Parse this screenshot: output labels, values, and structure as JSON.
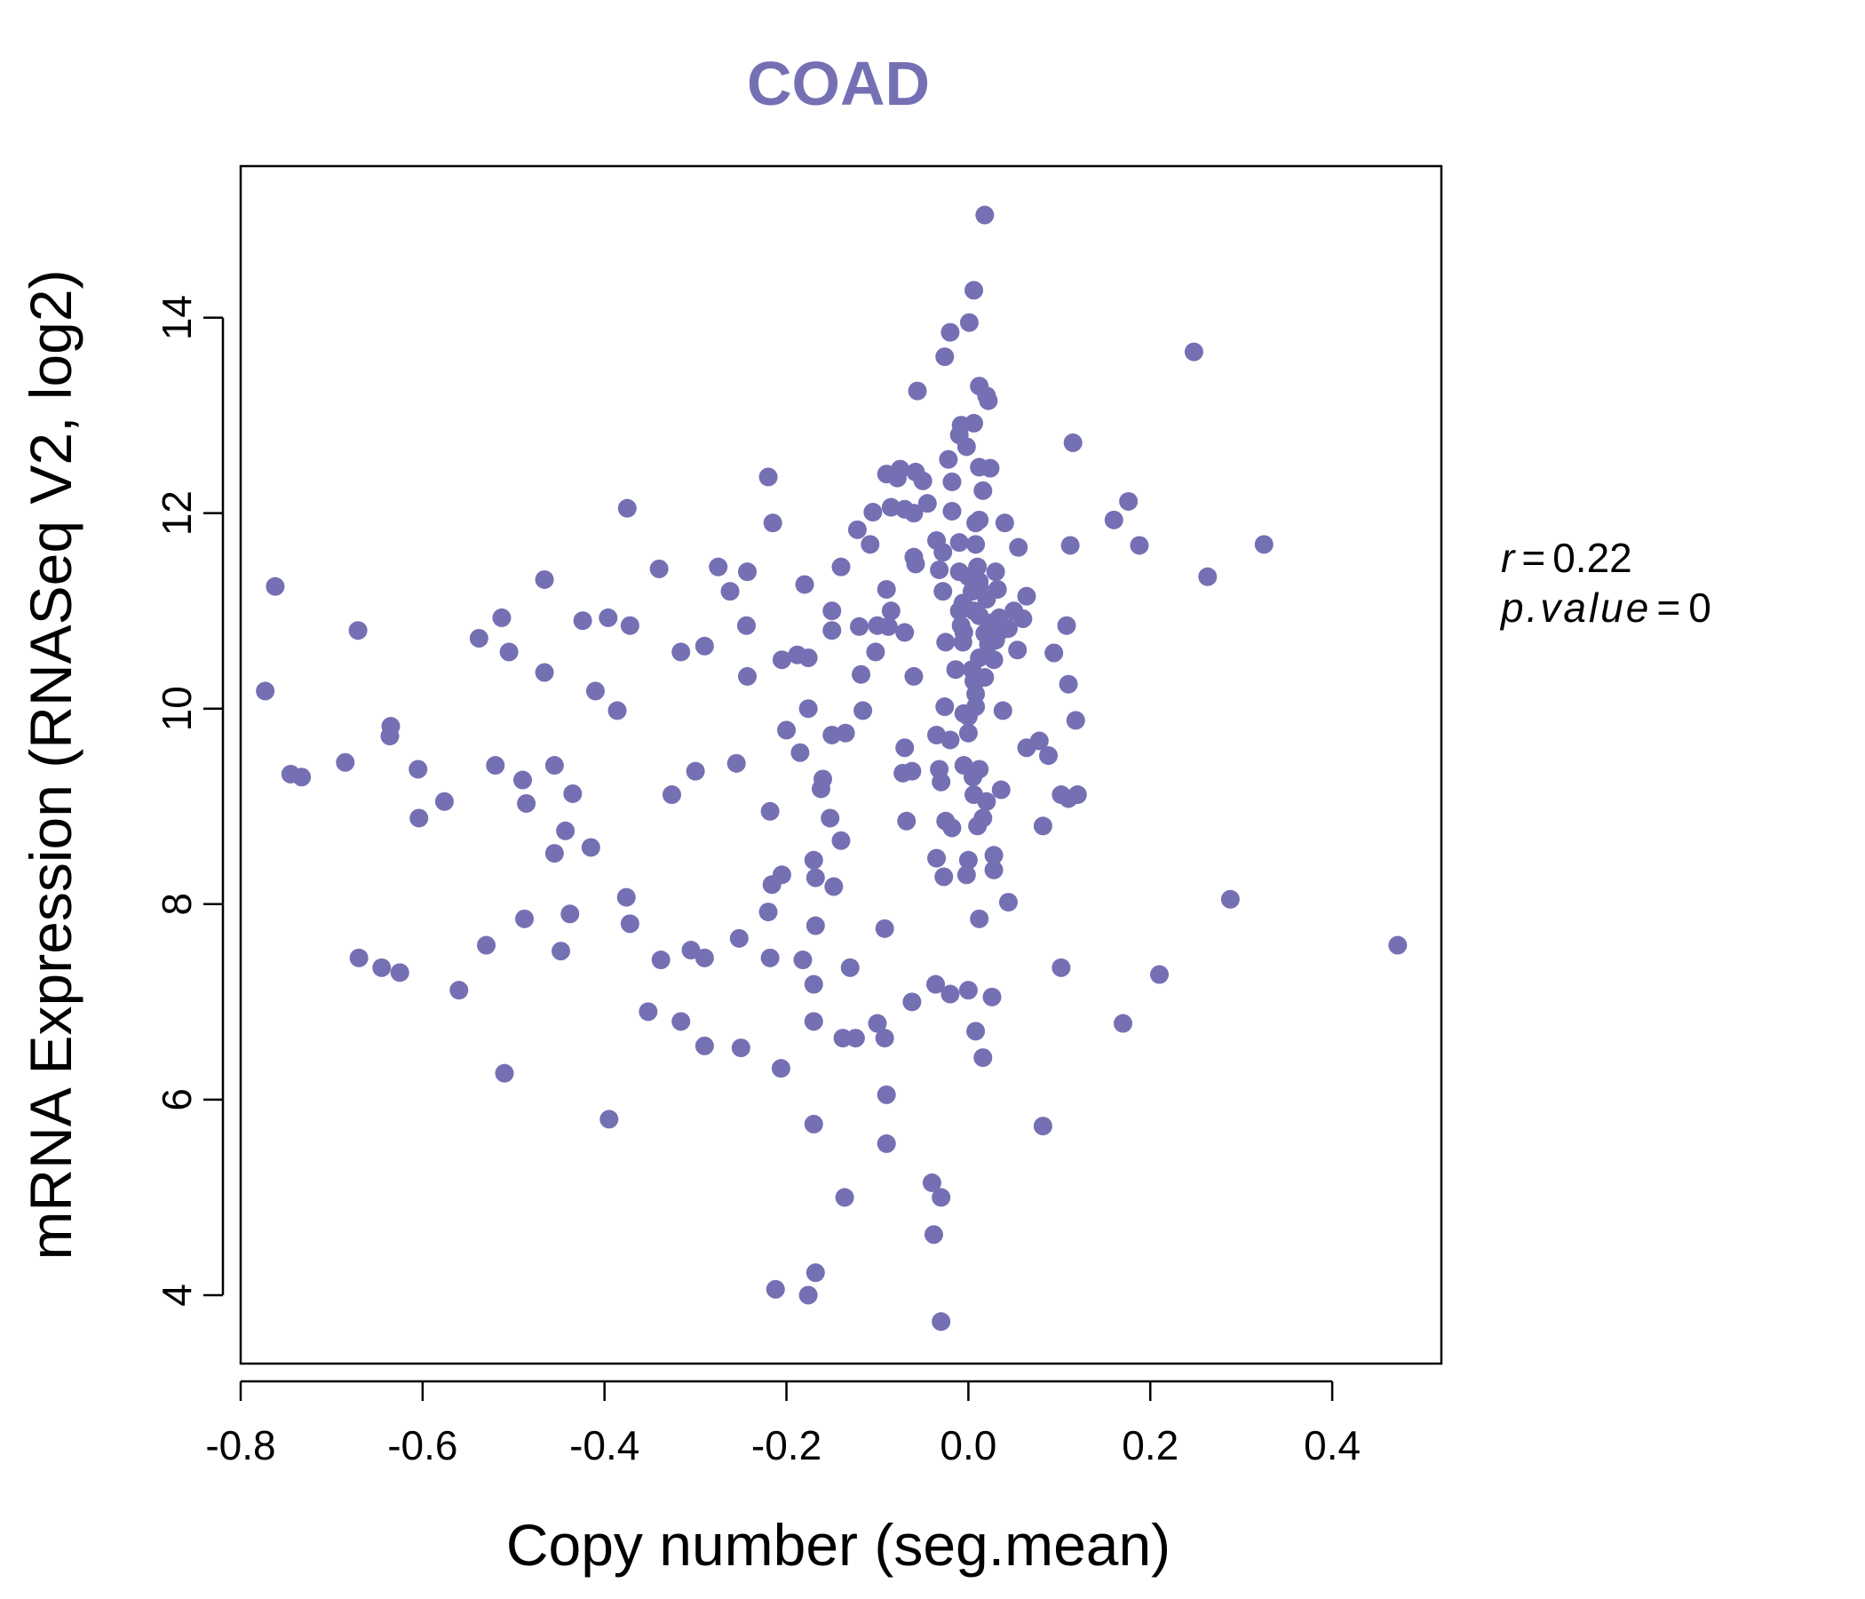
{
  "chart_data": {
    "type": "scatter",
    "title": "COAD",
    "xlabel": "Copy number (seg.mean)",
    "ylabel": "mRNA Expression (RNASeq V2, log2)",
    "xlim": [
      -0.8,
      0.52
    ],
    "ylim": [
      3.3,
      15.55
    ],
    "xticks": [
      -0.8,
      -0.6,
      -0.4,
      -0.2,
      0.0,
      0.2,
      0.4
    ],
    "xtick_labels": [
      "-0.8",
      "-0.6",
      "-0.4",
      "-0.2",
      "0.0",
      "0.2",
      "0.4"
    ],
    "yticks": [
      4,
      6,
      8,
      10,
      12,
      14
    ],
    "ytick_labels": [
      "4",
      "6",
      "8",
      "10",
      "12",
      "14"
    ],
    "grid": false,
    "legend": "none",
    "point_color": "#7570B3",
    "annotations": {
      "r_label": "r",
      "r_value": "0.22",
      "p_label": "p.value",
      "p_value": "0"
    },
    "series": [
      {
        "points": [
          [
            0.018,
            15.05
          ],
          [
            0.006,
            14.28
          ],
          [
            0.001,
            13.95
          ],
          [
            -0.02,
            13.85
          ],
          [
            0.248,
            13.65
          ],
          [
            -0.026,
            13.6
          ],
          [
            0.012,
            13.3
          ],
          [
            -0.056,
            13.25
          ],
          [
            0.02,
            13.2
          ],
          [
            0.022,
            13.15
          ],
          [
            0.006,
            12.92
          ],
          [
            -0.008,
            12.9
          ],
          [
            -0.01,
            12.8
          ],
          [
            -0.002,
            12.68
          ],
          [
            0.115,
            12.72
          ],
          [
            -0.022,
            12.55
          ],
          [
            0.012,
            12.47
          ],
          [
            0.024,
            12.46
          ],
          [
            -0.075,
            12.45
          ],
          [
            -0.058,
            12.42
          ],
          [
            -0.09,
            12.4
          ],
          [
            -0.078,
            12.36
          ],
          [
            -0.05,
            12.33
          ],
          [
            -0.018,
            12.32
          ],
          [
            -0.22,
            12.37
          ],
          [
            0.016,
            12.23
          ],
          [
            -0.045,
            12.1
          ],
          [
            0.176,
            12.12
          ],
          [
            -0.085,
            12.06
          ],
          [
            -0.07,
            12.04
          ],
          [
            -0.105,
            12.01
          ],
          [
            -0.06,
            12.0
          ],
          [
            -0.018,
            12.02
          ],
          [
            -0.375,
            12.05
          ],
          [
            0.012,
            11.93
          ],
          [
            0.008,
            11.9
          ],
          [
            0.04,
            11.9
          ],
          [
            -0.215,
            11.9
          ],
          [
            0.16,
            11.93
          ],
          [
            -0.122,
            11.83
          ],
          [
            -0.035,
            11.72
          ],
          [
            -0.01,
            11.7
          ],
          [
            0.008,
            11.68
          ],
          [
            0.055,
            11.65
          ],
          [
            0.112,
            11.67
          ],
          [
            0.188,
            11.67
          ],
          [
            0.325,
            11.68
          ],
          [
            -0.028,
            11.6
          ],
          [
            -0.108,
            11.68
          ],
          [
            -0.06,
            11.55
          ],
          [
            -0.058,
            11.48
          ],
          [
            0.01,
            11.45
          ],
          [
            -0.14,
            11.45
          ],
          [
            -0.34,
            11.43
          ],
          [
            -0.275,
            11.45
          ],
          [
            -0.243,
            11.4
          ],
          [
            -0.01,
            11.4
          ],
          [
            0.03,
            11.4
          ],
          [
            -0.032,
            11.42
          ],
          [
            0.0,
            11.35
          ],
          [
            0.012,
            11.3
          ],
          [
            0.263,
            11.35
          ],
          [
            -0.466,
            11.32
          ],
          [
            -0.18,
            11.27
          ],
          [
            0.012,
            11.25
          ],
          [
            0.032,
            11.22
          ],
          [
            -0.762,
            11.25
          ],
          [
            -0.09,
            11.22
          ],
          [
            0.004,
            11.2
          ],
          [
            -0.028,
            11.2
          ],
          [
            0.064,
            11.15
          ],
          [
            0.02,
            11.12
          ],
          [
            -0.006,
            11.08
          ],
          [
            -0.262,
            11.2
          ],
          [
            -0.01,
            11.0
          ],
          [
            0.006,
            11.0
          ],
          [
            0.05,
            11.0
          ],
          [
            0.012,
            10.95
          ],
          [
            0.034,
            10.93
          ],
          [
            0.06,
            10.92
          ],
          [
            -0.15,
            11.0
          ],
          [
            -0.085,
            11.0
          ],
          [
            -0.513,
            10.93
          ],
          [
            -0.424,
            10.9
          ],
          [
            -0.396,
            10.93
          ],
          [
            0.026,
            10.88
          ],
          [
            -0.008,
            10.85
          ],
          [
            0.108,
            10.85
          ],
          [
            -0.372,
            10.85
          ],
          [
            -0.244,
            10.85
          ],
          [
            -0.12,
            10.84
          ],
          [
            -0.088,
            10.84
          ],
          [
            -0.1,
            10.85
          ],
          [
            0.044,
            10.82
          ],
          [
            0.036,
            10.8
          ],
          [
            -0.005,
            10.78
          ],
          [
            0.018,
            10.77
          ],
          [
            -0.15,
            10.8
          ],
          [
            -0.07,
            10.78
          ],
          [
            -0.671,
            10.8
          ],
          [
            -0.538,
            10.72
          ],
          [
            0.03,
            10.7
          ],
          [
            -0.025,
            10.68
          ],
          [
            -0.006,
            10.68
          ],
          [
            0.022,
            10.66
          ],
          [
            -0.505,
            10.58
          ],
          [
            -0.316,
            10.58
          ],
          [
            -0.29,
            10.64
          ],
          [
            0.054,
            10.6
          ],
          [
            0.094,
            10.57
          ],
          [
            -0.102,
            10.58
          ],
          [
            0.028,
            10.5
          ],
          [
            0.012,
            10.52
          ],
          [
            -0.176,
            10.52
          ],
          [
            -0.188,
            10.55
          ],
          [
            -0.205,
            10.5
          ],
          [
            -0.014,
            10.4
          ],
          [
            0.004,
            10.4
          ],
          [
            -0.466,
            10.37
          ],
          [
            -0.243,
            10.33
          ],
          [
            -0.06,
            10.33
          ],
          [
            0.01,
            10.3
          ],
          [
            -0.118,
            10.35
          ],
          [
            0.018,
            10.32
          ],
          [
            0.006,
            10.28
          ],
          [
            0.11,
            10.25
          ],
          [
            -0.41,
            10.18
          ],
          [
            0.008,
            10.15
          ],
          [
            -0.773,
            10.18
          ],
          [
            -0.176,
            10.0
          ],
          [
            -0.026,
            10.02
          ],
          [
            0.008,
            10.02
          ],
          [
            -0.386,
            9.98
          ],
          [
            -0.116,
            9.98
          ],
          [
            0.038,
            9.98
          ],
          [
            -0.005,
            9.95
          ],
          [
            0.0,
            9.92
          ],
          [
            -0.635,
            9.82
          ],
          [
            -0.2,
            9.78
          ],
          [
            0.118,
            9.88
          ],
          [
            -0.636,
            9.72
          ],
          [
            -0.135,
            9.75
          ],
          [
            -0.15,
            9.73
          ],
          [
            0.0,
            9.75
          ],
          [
            -0.035,
            9.73
          ],
          [
            0.078,
            9.67
          ],
          [
            -0.02,
            9.68
          ],
          [
            0.064,
            9.6
          ],
          [
            -0.07,
            9.6
          ],
          [
            0.088,
            9.52
          ],
          [
            -0.185,
            9.55
          ],
          [
            -0.685,
            9.45
          ],
          [
            -0.455,
            9.42
          ],
          [
            -0.52,
            9.42
          ],
          [
            -0.605,
            9.38
          ],
          [
            -0.745,
            9.33
          ],
          [
            -0.733,
            9.3
          ],
          [
            -0.3,
            9.36
          ],
          [
            -0.255,
            9.44
          ],
          [
            -0.005,
            9.42
          ],
          [
            -0.032,
            9.38
          ],
          [
            -0.062,
            9.36
          ],
          [
            -0.072,
            9.34
          ],
          [
            0.012,
            9.38
          ],
          [
            -0.16,
            9.28
          ],
          [
            -0.49,
            9.27
          ],
          [
            -0.03,
            9.25
          ],
          [
            0.005,
            9.3
          ],
          [
            0.036,
            9.17
          ],
          [
            0.12,
            9.12
          ],
          [
            0.102,
            9.12
          ],
          [
            0.11,
            9.08
          ],
          [
            -0.162,
            9.18
          ],
          [
            -0.326,
            9.12
          ],
          [
            -0.435,
            9.13
          ],
          [
            -0.576,
            9.05
          ],
          [
            0.006,
            9.12
          ],
          [
            -0.486,
            9.03
          ],
          [
            0.02,
            9.05
          ],
          [
            -0.218,
            8.95
          ],
          [
            -0.152,
            8.88
          ],
          [
            -0.604,
            8.88
          ],
          [
            -0.068,
            8.85
          ],
          [
            -0.025,
            8.85
          ],
          [
            0.016,
            8.88
          ],
          [
            0.01,
            8.8
          ],
          [
            0.082,
            8.8
          ],
          [
            -0.018,
            8.78
          ],
          [
            -0.443,
            8.75
          ],
          [
            -0.14,
            8.65
          ],
          [
            -0.415,
            8.58
          ],
          [
            -0.455,
            8.52
          ],
          [
            0.028,
            8.5
          ],
          [
            -0.035,
            8.47
          ],
          [
            -0.17,
            8.45
          ],
          [
            0.0,
            8.45
          ],
          [
            0.028,
            8.35
          ],
          [
            -0.002,
            8.3
          ],
          [
            -0.027,
            8.28
          ],
          [
            -0.205,
            8.3
          ],
          [
            -0.168,
            8.27
          ],
          [
            -0.216,
            8.2
          ],
          [
            -0.148,
            8.18
          ],
          [
            -0.376,
            8.07
          ],
          [
            0.288,
            8.05
          ],
          [
            0.044,
            8.02
          ],
          [
            -0.22,
            7.92
          ],
          [
            -0.438,
            7.9
          ],
          [
            0.012,
            7.85
          ],
          [
            -0.488,
            7.85
          ],
          [
            -0.372,
            7.8
          ],
          [
            -0.168,
            7.78
          ],
          [
            -0.092,
            7.75
          ],
          [
            -0.252,
            7.65
          ],
          [
            -0.53,
            7.58
          ],
          [
            0.472,
            7.58
          ],
          [
            -0.448,
            7.52
          ],
          [
            -0.305,
            7.53
          ],
          [
            -0.29,
            7.45
          ],
          [
            -0.338,
            7.43
          ],
          [
            -0.218,
            7.45
          ],
          [
            -0.182,
            7.43
          ],
          [
            -0.67,
            7.45
          ],
          [
            -0.645,
            7.35
          ],
          [
            -0.625,
            7.3
          ],
          [
            -0.13,
            7.35
          ],
          [
            0.102,
            7.35
          ],
          [
            0.21,
            7.28
          ],
          [
            -0.17,
            7.18
          ],
          [
            -0.036,
            7.18
          ],
          [
            -0.56,
            7.12
          ],
          [
            0.0,
            7.12
          ],
          [
            -0.02,
            7.08
          ],
          [
            0.026,
            7.05
          ],
          [
            -0.062,
            7.0
          ],
          [
            -0.352,
            6.9
          ],
          [
            -0.316,
            6.8
          ],
          [
            -0.17,
            6.8
          ],
          [
            0.17,
            6.78
          ],
          [
            -0.1,
            6.78
          ],
          [
            0.008,
            6.7
          ],
          [
            -0.138,
            6.63
          ],
          [
            -0.124,
            6.63
          ],
          [
            -0.092,
            6.63
          ],
          [
            -0.29,
            6.55
          ],
          [
            -0.25,
            6.53
          ],
          [
            0.016,
            6.43
          ],
          [
            -0.206,
            6.32
          ],
          [
            -0.51,
            6.27
          ],
          [
            -0.09,
            6.05
          ],
          [
            -0.395,
            5.8
          ],
          [
            0.082,
            5.73
          ],
          [
            -0.17,
            5.75
          ],
          [
            -0.09,
            5.55
          ],
          [
            -0.04,
            5.15
          ],
          [
            -0.136,
            5.0
          ],
          [
            -0.03,
            5.0
          ],
          [
            -0.038,
            4.62
          ],
          [
            -0.168,
            4.23
          ],
          [
            -0.212,
            4.06
          ],
          [
            -0.176,
            4.0
          ],
          [
            -0.03,
            3.73
          ]
        ]
      }
    ]
  }
}
